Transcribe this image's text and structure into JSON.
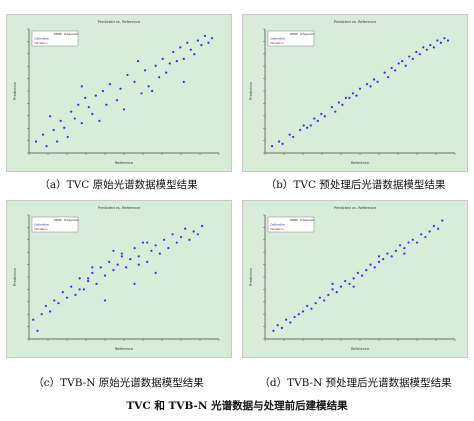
{
  "colors": {
    "plot_bg": "#d9ecd9",
    "point": "#2d2de6",
    "trend": "#5b5bd6",
    "legend_bg": "#ffffff"
  },
  "figure_caption": "TVC 和 TVB-N 光谱数据与处理前后建模结果",
  "chart_data": [
    {
      "type": "scatter",
      "caption": "（a）TVC 原始光谱数据模型结果",
      "title": "Predicted vs. Reference",
      "xlabel": "Reference",
      "ylabel": "Prediction",
      "legend": {
        "header": [
          "RMSE",
          "R-Squared"
        ],
        "rows": [
          "Calibration",
          "Validation"
        ]
      },
      "xlim": [
        3.8,
        9.2
      ],
      "ylim": [
        3.8,
        9.2
      ],
      "x": [
        4.0,
        4.2,
        4.3,
        4.5,
        4.6,
        4.7,
        4.8,
        4.9,
        5.0,
        5.1,
        5.2,
        5.3,
        5.4,
        5.5,
        5.6,
        5.7,
        5.8,
        5.9,
        6.0,
        6.1,
        6.3,
        6.4,
        6.5,
        6.6,
        6.8,
        7.0,
        7.1,
        7.2,
        7.4,
        7.5,
        7.6,
        7.7,
        7.8,
        7.9,
        8.0,
        8.1,
        8.2,
        8.3,
        8.4,
        8.5,
        8.6,
        8.7,
        8.8,
        8.9,
        9.0,
        4.4,
        5.3,
        6.9,
        8.2,
        7.3
      ],
      "y": [
        4.3,
        4.6,
        4.1,
        4.8,
        4.3,
        5.2,
        4.9,
        4.5,
        5.6,
        5.3,
        5.9,
        5.1,
        6.2,
        5.8,
        5.5,
        6.3,
        5.2,
        6.5,
        5.9,
        6.8,
        6.1,
        6.6,
        5.7,
        7.2,
        6.9,
        6.4,
        7.4,
        6.7,
        7.6,
        7.1,
        7.9,
        7.3,
        7.7,
        8.2,
        7.8,
        8.4,
        7.9,
        8.6,
        8.3,
        8.1,
        8.7,
        8.5,
        8.9,
        8.6,
        8.8,
        5.4,
        6.7,
        7.8,
        6.9,
        6.5
      ]
    },
    {
      "type": "scatter",
      "caption": "（b）TVC 预处理后光谱数据模型结果",
      "title": "Predicted vs. Reference",
      "xlabel": "Reference",
      "ylabel": "Prediction",
      "legend": {
        "header": [
          "RMSE",
          "R-Squared"
        ],
        "rows": [
          "Calibration",
          "Validation"
        ]
      },
      "xlim": [
        3.8,
        9.2
      ],
      "ylim": [
        3.8,
        9.2
      ],
      "x": [
        4.0,
        4.2,
        4.3,
        4.5,
        4.6,
        4.8,
        4.9,
        5.0,
        5.2,
        5.3,
        5.4,
        5.5,
        5.7,
        5.8,
        5.9,
        6.0,
        6.2,
        6.3,
        6.4,
        6.5,
        6.7,
        6.8,
        6.9,
        7.0,
        7.2,
        7.3,
        7.4,
        7.5,
        7.7,
        7.8,
        7.9,
        8.0,
        8.1,
        8.2,
        8.3,
        8.4,
        8.5,
        8.6,
        8.7,
        8.8,
        8.9,
        9.0,
        5.1,
        6.1,
        7.6
      ],
      "y": [
        4.1,
        4.3,
        4.2,
        4.6,
        4.5,
        4.8,
        5.0,
        4.9,
        5.3,
        5.2,
        5.5,
        5.4,
        5.8,
        5.6,
        6.0,
        5.9,
        6.2,
        6.4,
        6.3,
        6.6,
        6.8,
        6.7,
        7.0,
        6.9,
        7.3,
        7.1,
        7.5,
        7.4,
        7.8,
        7.6,
        8.0,
        7.9,
        8.2,
        8.1,
        8.4,
        8.3,
        8.5,
        8.4,
        8.7,
        8.6,
        8.8,
        8.7,
        5.0,
        6.2,
        7.7
      ]
    },
    {
      "type": "scatter",
      "caption": "（c）TVB-N 原始光谱数据模型结果",
      "title": "Predicted vs. Reference",
      "xlabel": "Reference",
      "ylabel": "Prediction",
      "legend": {
        "header": [
          "RMSE",
          "R-Squared"
        ],
        "rows": [
          "Calibration",
          "Validation"
        ]
      },
      "xlim": [
        0,
        45
      ],
      "ylim": [
        0,
        45
      ],
      "x": [
        1,
        2,
        3,
        4,
        5,
        6,
        7,
        8,
        9,
        10,
        11,
        12,
        13,
        14,
        15,
        16,
        17,
        18,
        19,
        20,
        21,
        22,
        23,
        24,
        25,
        26,
        27,
        28,
        29,
        30,
        31,
        32,
        33,
        34,
        35,
        36,
        37,
        38,
        39,
        40,
        41,
        12,
        15,
        18,
        22,
        25,
        28,
        30,
        14,
        20,
        26
      ],
      "y": [
        7,
        3,
        9,
        12,
        10,
        14,
        13,
        17,
        15,
        19,
        16,
        22,
        18,
        21,
        24,
        20,
        26,
        23,
        28,
        25,
        27,
        31,
        26,
        29,
        33,
        30,
        35,
        28,
        32,
        34,
        31,
        36,
        33,
        38,
        35,
        37,
        40,
        36,
        39,
        38,
        41,
        18,
        26,
        14,
        30,
        20,
        35,
        24,
        22,
        32,
        27
      ]
    },
    {
      "type": "scatter",
      "caption": "（d）TVB-N 预处理后光谱数据模型结果",
      "title": "Predicted vs. Reference",
      "xlabel": "Reference",
      "ylabel": "Prediction",
      "legend": {
        "header": [
          "RMSE",
          "R-Squared"
        ],
        "rows": [
          "Calibration",
          "Validation"
        ]
      },
      "xlim": [
        0,
        45
      ],
      "ylim": [
        0,
        45
      ],
      "x": [
        2,
        3,
        4,
        5,
        6,
        7,
        8,
        9,
        10,
        11,
        12,
        13,
        14,
        15,
        16,
        17,
        18,
        19,
        20,
        21,
        22,
        23,
        24,
        25,
        26,
        27,
        28,
        29,
        30,
        31,
        32,
        33,
        34,
        35,
        36,
        37,
        38,
        39,
        40,
        41,
        42,
        16,
        21,
        27,
        33
      ],
      "y": [
        3,
        5,
        4,
        7,
        6,
        8,
        9,
        10,
        12,
        11,
        13,
        15,
        14,
        16,
        18,
        17,
        19,
        21,
        20,
        22,
        24,
        23,
        25,
        27,
        26,
        28,
        29,
        31,
        30,
        32,
        34,
        33,
        35,
        36,
        35,
        38,
        37,
        39,
        41,
        40,
        43,
        20,
        19,
        30,
        31
      ]
    }
  ]
}
